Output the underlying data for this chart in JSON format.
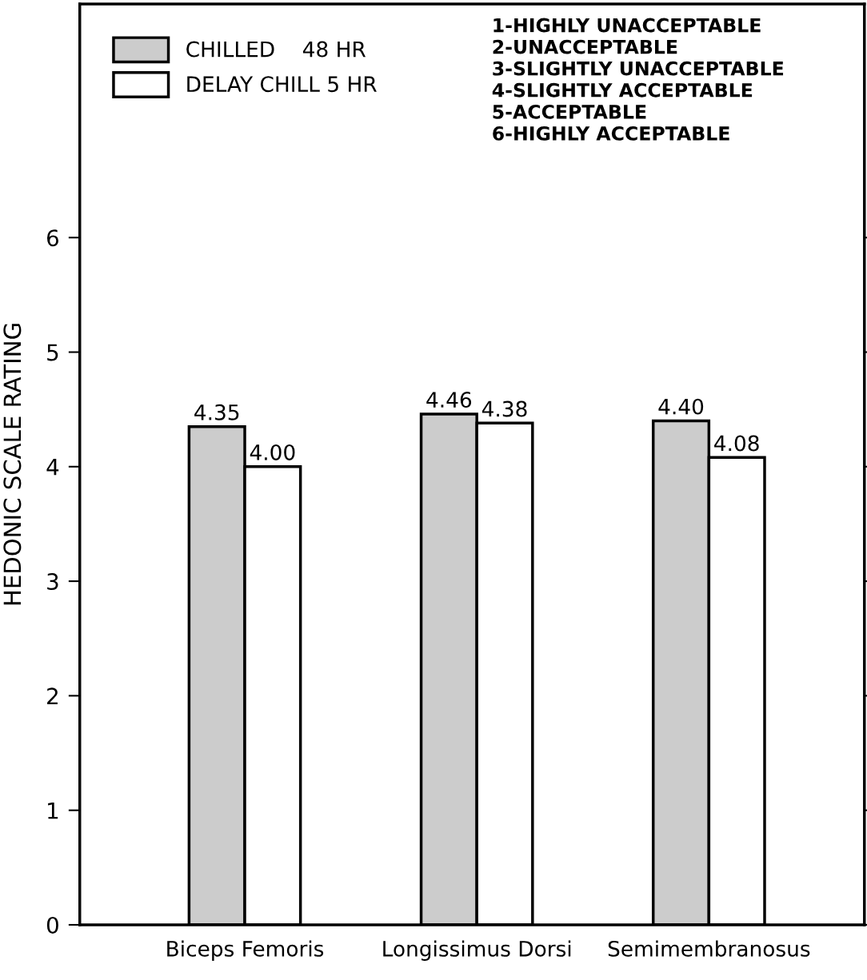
{
  "chart_data": {
    "type": "bar",
    "ylabel": "HEDONIC SCALE RATING",
    "categories": [
      "Biceps Femoris",
      "Longissimus Dorsi",
      "Semimembranosus"
    ],
    "series": [
      {
        "name": "CHILLED    48 HR",
        "color": "#cccccc",
        "values": [
          4.35,
          4.46,
          4.4
        ]
      },
      {
        "name": "DELAY CHILL 5 HR",
        "color": "#ffffff",
        "values": [
          4.0,
          4.38,
          4.08
        ]
      }
    ],
    "value_labels": [
      [
        "4.35",
        "4.46",
        "4.40"
      ],
      [
        "4.00",
        "4.38",
        "4.08"
      ]
    ],
    "ylim": [
      0,
      8.04
    ],
    "yticks": [
      0,
      1,
      2,
      3,
      4,
      5,
      6
    ],
    "grid": false,
    "legend": "top left",
    "annotations": [
      "1-HIGHLY UNACCEPTABLE",
      "2-UNACCEPTABLE",
      "3-SLIGHTLY UNACCEPTABLE",
      "4-SLIGHTLY ACCEPTABLE",
      "5-ACCEPTABLE",
      "6-HIGHLY ACCEPTABLE"
    ]
  }
}
